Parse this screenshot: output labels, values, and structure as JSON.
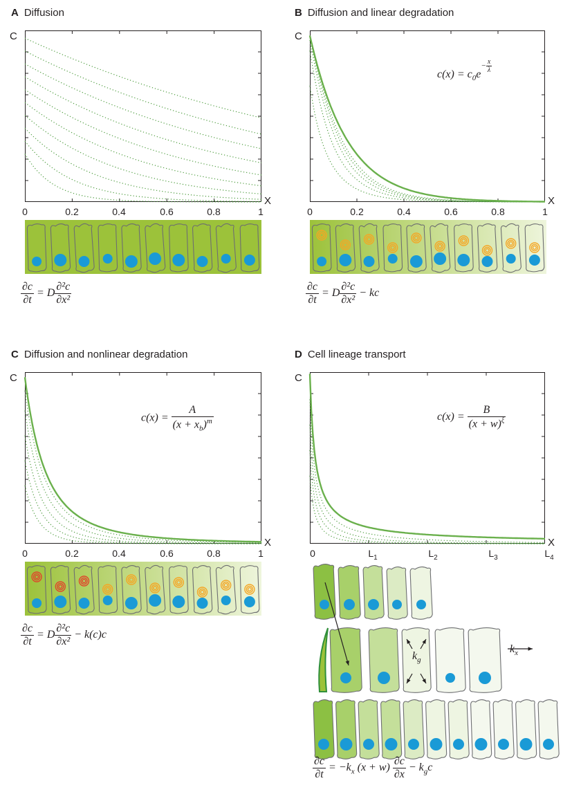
{
  "panels": [
    {
      "letter": "A",
      "title": "Diffusion",
      "x_label": "X",
      "y_label": "C",
      "ticks": [
        "0",
        "0.2",
        "0.4",
        "0.6",
        "0.8",
        "1"
      ]
    },
    {
      "letter": "B",
      "title": "Diffusion and linear degradation",
      "x_label": "X",
      "y_label": "C",
      "ticks": [
        "0",
        "0.2",
        "0.4",
        "0.6",
        "0.8",
        "1"
      ]
    },
    {
      "letter": "C",
      "title": "Diffusion and nonlinear degradation",
      "x_label": "X",
      "y_label": "C",
      "ticks": [
        "0",
        "0.2",
        "0.4",
        "0.6",
        "0.8",
        "1"
      ]
    },
    {
      "letter": "D",
      "title": "Cell lineage transport",
      "x_label": "X",
      "y_label": "C",
      "ticks": [
        "0",
        "L",
        "L",
        "L",
        "L"
      ],
      "tick_subs": [
        "",
        "1",
        "2",
        "3",
        "4"
      ]
    }
  ],
  "formulas": {
    "b_lhs": "c(x) = c",
    "b_sub": "0",
    "b_e": "e",
    "b_exp_sign": "−",
    "b_exp_num": "x",
    "b_exp_den": "λ",
    "c_lhs": "c(x) =",
    "c_num": "A",
    "c_den": "(x + x",
    "c_den_sub": "b",
    "c_den_end": ")",
    "c_pow": "m",
    "d_lhs": "c(x) =",
    "d_num": "B",
    "d_den": "(x + w)",
    "d_pow": "ξ"
  },
  "equations": {
    "a_lhs_num": "∂c",
    "a_lhs_den": "∂t",
    "a_eq": "= D",
    "a_rhs_num": "∂²c",
    "a_rhs_den": "∂x²",
    "b_tail": "− kc",
    "c_tail": "− k(c)c",
    "d_eq": "= −k",
    "d_eq_sub": "x",
    "d_mid": "(x + w)",
    "d_rhs_num": "∂c",
    "d_rhs_den": "∂x",
    "d_tail": "− k",
    "d_tail_sub": "g",
    "d_tail_end": "c"
  },
  "lineage_labels": {
    "kg": "k",
    "kg_sub": "g",
    "kx": "k",
    "kx_sub": "x"
  },
  "colors": {
    "curve": "#6ab04c",
    "dotted": "#4a9a3a",
    "nucleus": "#1a9ad6",
    "cell_outline": "#6d6e71",
    "tissue_dark": "#9cc23a",
    "tissue_light": "#eef5dc",
    "ring_orange": "#f5a623",
    "ring_red": "#e0442a"
  }
}
